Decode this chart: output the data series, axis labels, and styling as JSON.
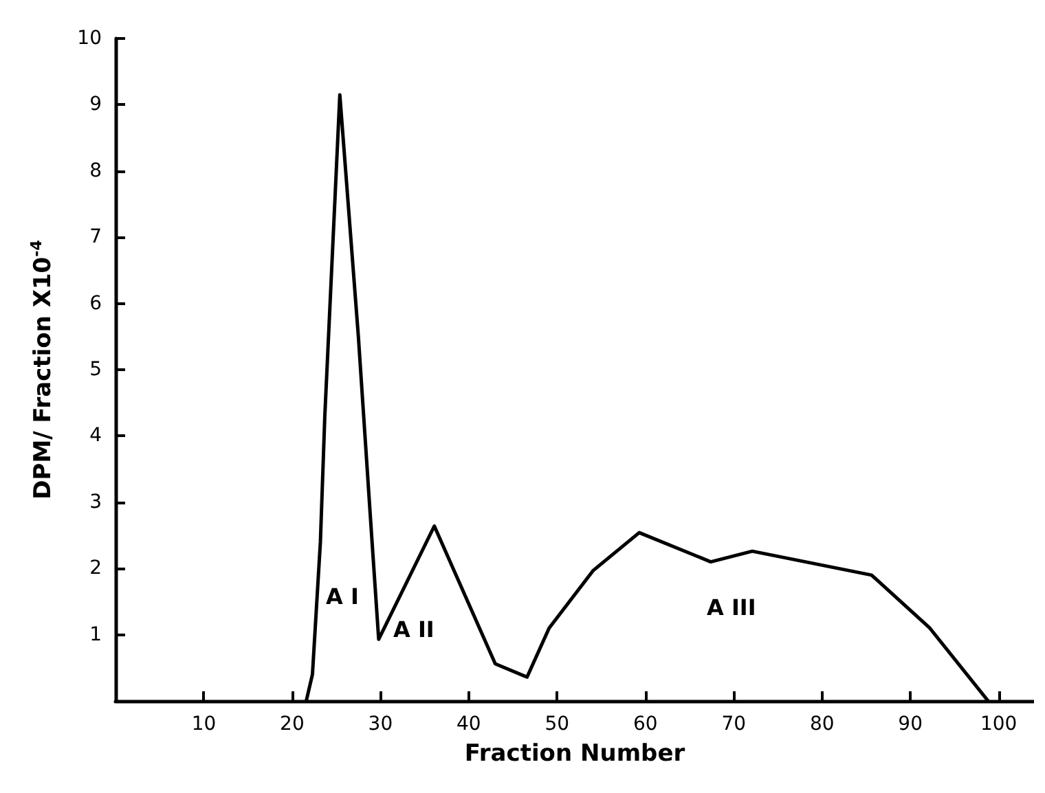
{
  "chart_data": {
    "type": "line",
    "xlabel": "Fraction Number",
    "ylabel": "DPM/ Fraction X10$^{-4}$",
    "xlim": [
      0,
      104
    ],
    "xticks": [
      10,
      20,
      30,
      40,
      50,
      60,
      70,
      80,
      90,
      100
    ],
    "ylim": [
      0,
      10
    ],
    "yticks": [
      1,
      2,
      3,
      4,
      5,
      6,
      7,
      8,
      9,
      10
    ],
    "grid": false,
    "marker": "none",
    "line_style": "solid",
    "series": [
      {
        "color": "#000000",
        "x": [
          21.6,
          22.3,
          23.2,
          23.7,
          25.4,
          27.5,
          29.0,
          29.8,
          36.1,
          43.0,
          46.6,
          49.1,
          54.1,
          59.3,
          67.4,
          72.1,
          85.6,
          92.2,
          98.8
        ],
        "values": [
          0,
          0.4,
          2.4,
          4.3,
          9.15,
          5.5,
          2.5,
          0.93,
          2.64,
          0.56,
          0.36,
          1.1,
          1.97,
          2.54,
          2.1,
          2.26,
          1.9,
          1.1,
          0
        ]
      }
    ],
    "annotations": [
      "A I",
      "A II",
      "A III"
    ]
  }
}
